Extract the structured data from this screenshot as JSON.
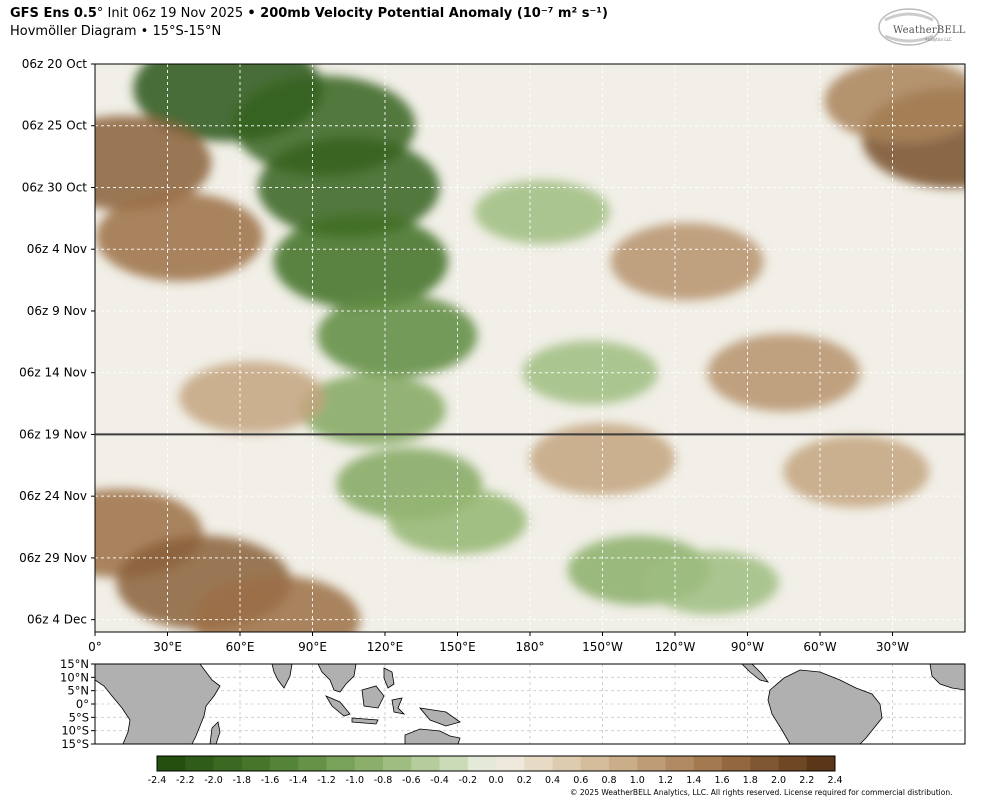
{
  "header": {
    "model": "GFS Ens 0.5",
    "deg": "°",
    "init": " Init 06z 19 Nov 2025 ",
    "bullet": "•",
    "variable": " 200mb Velocity Potential Anomaly ",
    "units": "(10⁻⁷ m² s⁻¹)",
    "subtitle": "Hovmöller Diagram • 15°S-15°N"
  },
  "logo": {
    "text": "WeatherBELL",
    "sub": "Analytics LLC"
  },
  "copyright": "© 2025 WeatherBELL Analytics, LLC. All rights reserved. License required for commercial distribution.",
  "colors": {
    "green_dark": "#1f4a0c",
    "green_mid": "#6f9d4e",
    "green_light": "#c8dcb0",
    "neutral": "#f3f1ea",
    "brown_light": "#d8c3a0",
    "brown_mid": "#a8835a",
    "brown_dark": "#5a3418",
    "land": "#b0b0b0"
  },
  "chart_data": {
    "type": "heatmap",
    "title": "200mb Velocity Potential Anomaly",
    "units": "10⁻⁷ m² s⁻¹",
    "xlabel": "",
    "ylabel": "",
    "x_ticks": [
      "0°",
      "30°E",
      "60°E",
      "90°E",
      "120°E",
      "150°E",
      "180°",
      "150°W",
      "120°W",
      "90°W",
      "60°W",
      "30°W"
    ],
    "x_tick_lons": [
      0,
      30,
      60,
      90,
      120,
      150,
      180,
      210,
      240,
      270,
      300,
      330
    ],
    "x_range": [
      0,
      360
    ],
    "y_ticks": [
      "06z 20 Oct",
      "06z 25 Oct",
      "06z 30 Oct",
      "06z 4 Nov",
      "06z 9 Nov",
      "06z 14 Nov",
      "06z 19 Nov",
      "06z 24 Nov",
      "06z 29 Nov",
      "06z 4 Dec"
    ],
    "y_tick_days": [
      0,
      5,
      10,
      15,
      20,
      25,
      30,
      35,
      40,
      45
    ],
    "y_range_days": [
      0,
      46
    ],
    "init_marker_label": "06z 19 Nov",
    "init_marker_day": 30,
    "colorbar_ticks": [
      "-2.4",
      "-2.2",
      "-2.0",
      "-1.8",
      "-1.6",
      "-1.4",
      "-1.2",
      "-1.0",
      "-0.8",
      "-0.6",
      "-0.4",
      "-0.2",
      "0.0",
      "0.2",
      "0.4",
      "0.6",
      "0.8",
      "1.0",
      "1.2",
      "1.4",
      "1.6",
      "1.8",
      "2.0",
      "2.2",
      "2.4"
    ],
    "colorbar_range": [
      -2.4,
      2.4
    ],
    "map_lat_ticks": [
      "15°N",
      "10°N",
      "5°N",
      "0°",
      "5°S",
      "10°S",
      "15°S"
    ],
    "grid": true,
    "anomaly_centers": [
      {
        "lon": 55,
        "day": 2,
        "value": -2.2
      },
      {
        "lon": 95,
        "day": 5,
        "value": -2.0
      },
      {
        "lon": 105,
        "day": 10,
        "value": -2.0
      },
      {
        "lon": 110,
        "day": 16,
        "value": -1.8
      },
      {
        "lon": 125,
        "day": 22,
        "value": -1.4
      },
      {
        "lon": 115,
        "day": 28,
        "value": -1.0
      },
      {
        "lon": 130,
        "day": 34,
        "value": -1.0
      },
      {
        "lon": 150,
        "day": 37,
        "value": -0.8
      },
      {
        "lon": 225,
        "day": 41,
        "value": -0.9
      },
      {
        "lon": 255,
        "day": 42,
        "value": -0.7
      },
      {
        "lon": 185,
        "day": 12,
        "value": -0.7
      },
      {
        "lon": 205,
        "day": 25,
        "value": -0.7
      },
      {
        "lon": 12,
        "day": 8,
        "value": 1.8
      },
      {
        "lon": 35,
        "day": 14,
        "value": 1.6
      },
      {
        "lon": 355,
        "day": 6,
        "value": 2.0
      },
      {
        "lon": 335,
        "day": 3,
        "value": 1.4
      },
      {
        "lon": 245,
        "day": 16,
        "value": 1.2
      },
      {
        "lon": 285,
        "day": 25,
        "value": 1.2
      },
      {
        "lon": 210,
        "day": 32,
        "value": 1.0
      },
      {
        "lon": 10,
        "day": 38,
        "value": 1.6
      },
      {
        "lon": 45,
        "day": 42,
        "value": 1.8
      },
      {
        "lon": 75,
        "day": 45,
        "value": 1.6
      },
      {
        "lon": 65,
        "day": 27,
        "value": 1.0
      },
      {
        "lon": 315,
        "day": 33,
        "value": 1.0
      }
    ]
  }
}
